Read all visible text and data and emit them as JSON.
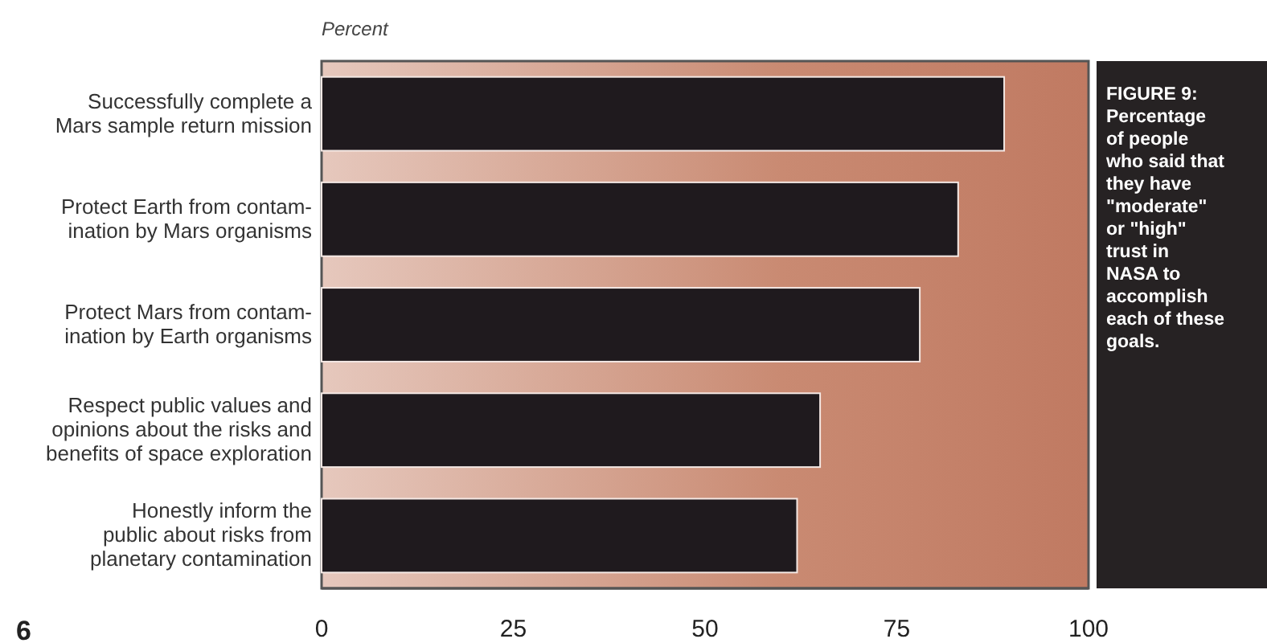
{
  "chart_data": {
    "type": "bar",
    "orientation": "horizontal",
    "title": "FIGURE 9:",
    "subtitle": "Percentage\nof people\nwho said that\nthey have\n\"moderate\"\nor \"high\"\ntrust in\nNASA to\naccomplish\neach of these\ngoals.",
    "xlabel": "Percent",
    "categories": [
      "Successfully complete a\nMars sample return mission",
      "Protect Earth from contam-\nination by Mars organisms",
      "Protect Mars from contam-\nination by Earth organisms",
      "Respect public values and\nopinions about the risks and\nbenefits of space exploration",
      "Honestly inform the\npublic about risks from\nplanetary contamination"
    ],
    "values": [
      89,
      83,
      78,
      65,
      62
    ],
    "color": "#1f1a1e",
    "xlim": [
      0,
      100
    ],
    "xticks": [
      0,
      25,
      50,
      75,
      100
    ],
    "grid": false,
    "annotations": [
      "6"
    ]
  }
}
